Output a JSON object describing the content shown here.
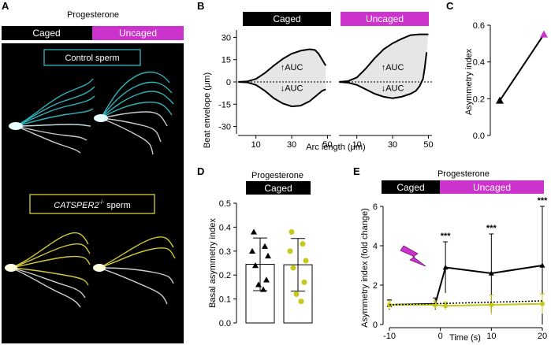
{
  "panel_a": {
    "letter": "A",
    "heading": "Progesterone",
    "bar_left": "Caged",
    "bar_right": "Uncaged",
    "control_label": "Control sperm",
    "mutant_label_name": "CATSPER2",
    "mutant_label_sup": "-/-",
    "mutant_label_suffix": " sperm",
    "colors": {
      "control": "#36c6cf",
      "mutant": "#e8de3a",
      "uncaged": "#cc33cc"
    }
  },
  "chart_data": [
    {
      "panel": "B",
      "type": "line",
      "headers": [
        "Caged",
        "Uncaged"
      ],
      "ylabel": "Beat envelope (μm)",
      "xlabel": "Arc length (μm)",
      "yticks": [
        30,
        15,
        0,
        -15,
        -30
      ],
      "xticks": [
        10,
        30,
        50
      ],
      "ylim": [
        -35,
        35
      ],
      "xlim": [
        0,
        52
      ],
      "annot_up": "↑AUC",
      "annot_down": "↓AUC",
      "series": [
        {
          "header": "Caged",
          "upper": [
            [
              0,
              0
            ],
            [
              5,
              0.3
            ],
            [
              10,
              2
            ],
            [
              15,
              6
            ],
            [
              20,
              11
            ],
            [
              25,
              15.5
            ],
            [
              30,
              19
            ],
            [
              35,
              21
            ],
            [
              40,
              22
            ],
            [
              43,
              21.5
            ],
            [
              45,
              19
            ],
            [
              47,
              15
            ],
            [
              49,
              11
            ]
          ],
          "lower": [
            [
              0,
              0
            ],
            [
              5,
              -0.3
            ],
            [
              10,
              -2
            ],
            [
              15,
              -6
            ],
            [
              20,
              -11
            ],
            [
              25,
              -14.5
            ],
            [
              30,
              -16.5
            ],
            [
              35,
              -16
            ],
            [
              40,
              -13
            ],
            [
              44,
              -9
            ],
            [
              47,
              -6
            ],
            [
              49,
              -5
            ]
          ]
        },
        {
          "header": "Uncaged",
          "upper": [
            [
              0,
              0
            ],
            [
              5,
              0.5
            ],
            [
              10,
              3
            ],
            [
              15,
              9
            ],
            [
              20,
              16
            ],
            [
              25,
              22
            ],
            [
              30,
              26
            ],
            [
              35,
              29
            ],
            [
              40,
              31.5
            ],
            [
              45,
              32
            ],
            [
              50,
              32
            ]
          ],
          "lower": [
            [
              0,
              0
            ],
            [
              5,
              -0.5
            ],
            [
              10,
              -2
            ],
            [
              15,
              -5
            ],
            [
              20,
              -8
            ],
            [
              25,
              -10
            ],
            [
              30,
              -11
            ],
            [
              35,
              -10
            ],
            [
              40,
              -8
            ],
            [
              43,
              -6
            ],
            [
              45,
              -3
            ],
            [
              47,
              2
            ],
            [
              48,
              10
            ],
            [
              49,
              20
            ]
          ]
        }
      ]
    },
    {
      "panel": "C",
      "type": "line",
      "ylabel": "Asymmetry index",
      "yticks": [
        0.0,
        0.2,
        0.4,
        0.6
      ],
      "ylim": [
        0,
        0.6
      ],
      "values": [
        0.19,
        0.55
      ],
      "colors": [
        "#000000",
        "#cc33cc"
      ]
    },
    {
      "panel": "D",
      "type": "bar",
      "title": "Progesterone",
      "header": "Caged",
      "ylabel": "Basal asymmetry index",
      "yticks": [
        0.0,
        0.1,
        0.2,
        0.3,
        0.4,
        0.5
      ],
      "ylim": [
        0,
        0.5
      ],
      "series": [
        {
          "mean": 0.245,
          "sd": 0.11,
          "marker": "triangle",
          "color": "#000000",
          "points": [
            0.38,
            0.32,
            0.3,
            0.28,
            0.24,
            0.18,
            0.16,
            0.14
          ]
        },
        {
          "mean": 0.243,
          "sd": 0.11,
          "marker": "circle",
          "color": "#c8c81a",
          "points": [
            0.38,
            0.33,
            0.3,
            0.26,
            0.23,
            0.17,
            0.12,
            0.09
          ]
        }
      ]
    },
    {
      "panel": "E",
      "type": "line",
      "title": "Progesterone",
      "bar_left": "Caged",
      "bar_right": "Uncaged",
      "ylabel": "Asymmetry index (fold change)",
      "xlabel": "Time (s)",
      "xticks": [
        -10,
        0,
        10,
        20
      ],
      "yticks": [
        0,
        2,
        4,
        6
      ],
      "xlim": [
        -10,
        20
      ],
      "ylim": [
        0,
        6
      ],
      "significance": "***",
      "sig_x": [
        1,
        10,
        20
      ],
      "series": [
        {
          "color": "#000000",
          "marker": "triangle",
          "x": [
            -10,
            -1,
            1,
            10,
            20
          ],
          "y": [
            1.0,
            1.05,
            2.9,
            2.6,
            3.0
          ],
          "err": [
            0.25,
            0.3,
            1.3,
            2.0,
            3.0
          ]
        },
        {
          "color": "#c8c81a",
          "marker": "circle",
          "x": [
            -10,
            -1,
            1,
            10,
            20
          ],
          "y": [
            1.0,
            1.0,
            0.95,
            1.0,
            1.05
          ],
          "err": [
            0.2,
            0.2,
            0.2,
            0.5,
            0.5
          ]
        },
        {
          "color": "#000000",
          "marker": "none",
          "dotted": true,
          "x": [
            -10,
            20
          ],
          "y": [
            1.0,
            1.2
          ],
          "err": [
            0,
            0
          ]
        }
      ]
    }
  ],
  "panel_letters": {
    "b": "B",
    "c": "C",
    "d": "D",
    "e": "E"
  }
}
